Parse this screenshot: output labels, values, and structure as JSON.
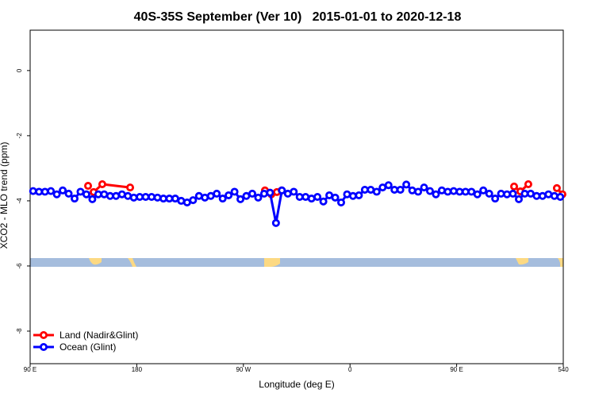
{
  "chart_data": {
    "type": "line",
    "title": "40S-35S September (Ver 10)   2015-01-01 to 2020-12-18",
    "x_label": "Longitude (deg E)",
    "y_label": "XCO2 - MLO trend (ppm)",
    "xlim": [
      90,
      540
    ],
    "xticks": [
      {
        "value": 90,
        "label": "90 E"
      },
      180,
      {
        "value": 270,
        "label": "90 W"
      },
      {
        "value": 360,
        "label": "0"
      },
      {
        "value": 450,
        "label": "90 E"
      },
      540
    ],
    "ylim": [
      -9,
      1.24
    ],
    "yticks": [
      0,
      -2,
      -4,
      -6,
      -8
    ],
    "legend": "bottom-left",
    "series": [
      {
        "name": "Land (Nadir&Glint)",
        "color": "#ff0000",
        "x": [
          138.9,
          null,
          143.6,
          150.9,
          174.4,
          null,
          288.2,
          293.6,
          298.3,
          302.3,
          null,
          498.5,
          503.8,
          510.5,
          null,
          534.6,
          539.3
        ],
        "values": [
          -3.54,
          null,
          -3.73,
          -3.49,
          -3.59,
          null,
          -3.68,
          -3.8,
          -3.73,
          -3.68,
          null,
          -3.56,
          -3.71,
          -3.49,
          null,
          -3.61,
          -3.8
        ]
      },
      {
        "name": "Ocean (Glint)",
        "color": "#0000ff",
        "x": [
          92.5,
          97.5,
          102.5,
          107.5,
          112.5,
          117.5,
          122.5,
          127.5,
          132.5,
          137.5,
          142.5,
          147.5,
          152.5,
          157.5,
          162.5,
          167.5,
          172.5,
          177.5,
          182.5,
          187.5,
          192.5,
          197.5,
          202.5,
          207.5,
          212.5,
          217.5,
          222.5,
          227.5,
          232.5,
          237.5,
          242.5,
          247.5,
          252.5,
          257.5,
          262.5,
          267.5,
          272.5,
          277.5,
          282.5,
          287.5,
          292.5,
          297.5,
          302.5,
          307.5,
          312.5,
          317.5,
          322.5,
          327.5,
          332.5,
          337.5,
          342.5,
          347.5,
          352.5,
          357.5,
          362.5,
          367.5,
          372.5,
          377.5,
          382.5,
          387.5,
          392.5,
          397.5,
          402.5,
          407.5,
          412.5,
          417.5,
          422.5,
          427.5,
          432.5,
          437.5,
          442.5,
          447.5,
          452.5,
          457.5,
          462.5,
          467.5,
          472.5,
          477.5,
          482.5,
          487.5,
          492.5,
          497.5,
          502.5,
          507.5,
          512.5,
          517.5,
          522.5,
          527.5,
          532.5,
          537.5
        ],
        "values": [
          -3.7,
          -3.72,
          -3.72,
          -3.7,
          -3.8,
          -3.68,
          -3.78,
          -3.93,
          -3.72,
          -3.8,
          -3.95,
          -3.8,
          -3.8,
          -3.85,
          -3.85,
          -3.8,
          -3.85,
          -3.9,
          -3.88,
          -3.88,
          -3.88,
          -3.9,
          -3.93,
          -3.93,
          -3.93,
          -4.0,
          -4.05,
          -3.98,
          -3.85,
          -3.9,
          -3.85,
          -3.78,
          -3.93,
          -3.83,
          -3.72,
          -3.95,
          -3.85,
          -3.78,
          -3.9,
          -3.78,
          -3.75,
          -4.68,
          -3.68,
          -3.78,
          -3.72,
          -3.88,
          -3.88,
          -3.93,
          -3.88,
          -4.02,
          -3.83,
          -3.9,
          -4.05,
          -3.8,
          -3.85,
          -3.83,
          -3.66,
          -3.66,
          -3.72,
          -3.59,
          -3.52,
          -3.66,
          -3.66,
          -3.5,
          -3.68,
          -3.72,
          -3.59,
          -3.7,
          -3.8,
          -3.68,
          -3.72,
          -3.7,
          -3.72,
          -3.72,
          -3.72,
          -3.8,
          -3.68,
          -3.78,
          -3.93,
          -3.78,
          -3.8,
          -3.78,
          -3.95,
          -3.78,
          -3.78,
          -3.85,
          -3.85,
          -3.8,
          -3.85,
          -3.88
        ]
      }
    ]
  }
}
